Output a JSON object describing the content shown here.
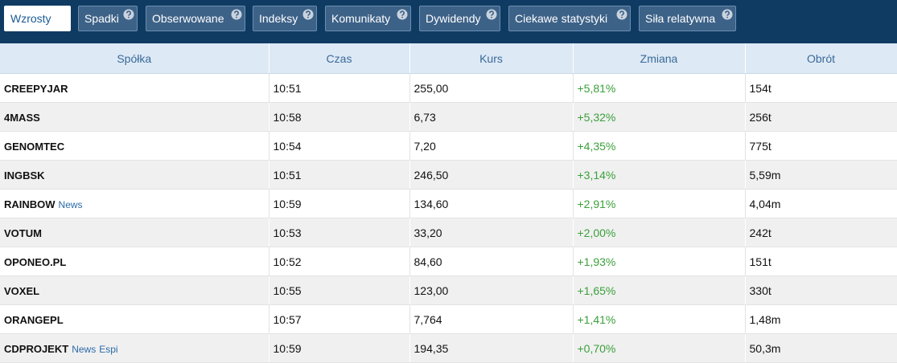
{
  "tabs": [
    "Wzrosty",
    "Spadki",
    "Obserwowane",
    "Indeksy",
    "Komunikaty",
    "Dywidendy",
    "Ciekawe statystyki",
    "Siła relatywna"
  ],
  "table": {
    "headers": [
      "Spółka",
      "Czas",
      "Kurs",
      "Zmiana",
      "Obrót"
    ],
    "rows": [
      {
        "name": "CREEPYJAR",
        "tags": [],
        "cells": [
          "10:51",
          "255,00",
          "+5,81%",
          "154t"
        ]
      },
      {
        "name": "4MASS",
        "tags": [],
        "cells": [
          "10:58",
          "6,73",
          "+5,32%",
          "256t"
        ]
      },
      {
        "name": "GENOMTEC",
        "tags": [],
        "cells": [
          "10:54",
          "7,20",
          "+4,35%",
          "775t"
        ]
      },
      {
        "name": "INGBSK",
        "tags": [],
        "cells": [
          "10:51",
          "246,50",
          "+3,14%",
          "5,59m"
        ]
      },
      {
        "name": "RAINBOW",
        "tags": [
          "News"
        ],
        "cells": [
          "10:59",
          "134,60",
          "+2,91%",
          "4,04m"
        ]
      },
      {
        "name": "VOTUM",
        "tags": [],
        "cells": [
          "10:53",
          "33,20",
          "+2,00%",
          "242t"
        ]
      },
      {
        "name": "OPONEO.PL",
        "tags": [],
        "cells": [
          "10:52",
          "84,60",
          "+1,93%",
          "151t"
        ]
      },
      {
        "name": "VOXEL",
        "tags": [],
        "cells": [
          "10:55",
          "123,00",
          "+1,65%",
          "330t"
        ]
      },
      {
        "name": "ORANGEPL",
        "tags": [],
        "cells": [
          "10:57",
          "7,764",
          "+1,41%",
          "1,48m"
        ]
      },
      {
        "name": "CDPROJEKT",
        "tags": [
          "News",
          "Espi"
        ],
        "cells": [
          "10:59",
          "194,35",
          "+0,70%",
          "50,3m"
        ]
      }
    ]
  }
}
